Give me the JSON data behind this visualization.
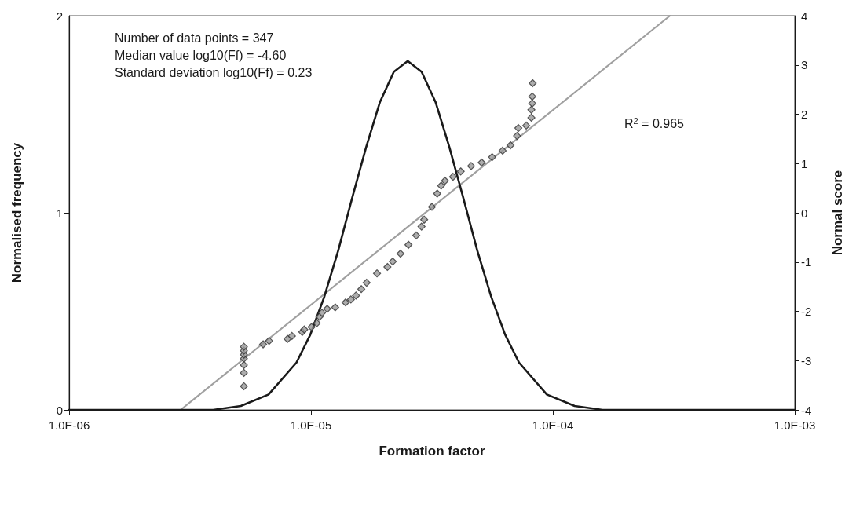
{
  "chart_data": {
    "type": "line",
    "xlabel": "Formation factor",
    "ylabel": "Normalised frequency",
    "y2label": "Normal score",
    "log": "x",
    "grid": false,
    "xlim": [
      1e-06,
      0.001
    ],
    "xticks": [
      {
        "value": 1e-06,
        "label": "1.0E-06"
      },
      {
        "value": 1e-05,
        "label": "1.0E-05"
      },
      {
        "value": 0.0001,
        "label": "1.0E-04"
      },
      {
        "value": 0.001,
        "label": "1.0E-03"
      }
    ],
    "ylim": [
      0,
      2
    ],
    "yticks": [
      0,
      1,
      2
    ],
    "y2lim": [
      -4,
      4
    ],
    "y2ticks": [
      -4,
      -3,
      -2,
      -1,
      0,
      1,
      2,
      3,
      4
    ],
    "annotations": [
      "Number of data points = 347",
      "Median value log10(Ff) = -4.60",
      "Standard deviation log10(Ff) = 0.23",
      "R$^{2}$ = 0.965"
    ],
    "series": [
      {
        "color": "#1a1a1a",
        "marker": "none",
        "x": [
          1e-06,
          2e-06,
          3.02e-06,
          3.94e-06,
          5.13e-06,
          6.68e-06,
          8.71e-06,
          9.94e-06,
          1.135e-05,
          1.296e-05,
          1.479e-05,
          1.689e-05,
          1.928e-05,
          2.2e-05,
          2.512e-05,
          2.867e-05,
          3.273e-05,
          3.737e-05,
          4.266e-05,
          4.87e-05,
          5.559e-05,
          6.346e-05,
          7.244e-05,
          9.441e-05,
          0.000123,
          0.0001603,
          0.0002089,
          0.0005,
          0.001
        ],
        "values": [
          0,
          0,
          0,
          0,
          0.02,
          0.078,
          0.24,
          0.382,
          0.574,
          0.808,
          1.074,
          1.331,
          1.562,
          1.715,
          1.77,
          1.715,
          1.562,
          1.331,
          1.074,
          0.808,
          0.574,
          0.382,
          0.24,
          0.078,
          0.02,
          0,
          0,
          0,
          0
        ]
      },
      {
        "type": "line",
        "axis": "y2",
        "color": "#a0a0a0",
        "marker": "none",
        "x": [
          2.89e-06,
          0.000305
        ],
        "values": [
          -4,
          4
        ]
      },
      {
        "type": "scatter",
        "axis": "y2",
        "color": "#999999",
        "marker": "diamond",
        "x": [
          5.28e-06,
          5.28e-06,
          5.28e-06,
          5.28e-06,
          5.28e-06,
          5.28e-06,
          5.28e-06,
          6.34e-06,
          6.71e-06,
          8e-06,
          8.34e-06,
          9.2e-06,
          9.38e-06,
          1.005e-05,
          1.057e-05,
          1.084e-05,
          1.11e-05,
          1.167e-05,
          1.259e-05,
          1.39e-05,
          1.462e-05,
          1.535e-05,
          1.614e-05,
          1.698e-05,
          1.875e-05,
          2.07e-05,
          2.178e-05,
          2.344e-05,
          2.529e-05,
          2.723e-05,
          2.864e-05,
          2.937e-05,
          3.162e-05,
          3.325e-05,
          3.451e-05,
          3.581e-05,
          3.864e-05,
          4.159e-05,
          4.593e-05,
          5.076e-05,
          5.61e-05,
          6.197e-05,
          6.68e-05,
          7.11e-05,
          7.2e-05,
          7.76e-05,
          8.15e-05,
          8.15e-05,
          8.22e-05,
          8.22e-05,
          8.25e-05
        ],
        "values": [
          -3.52,
          -3.25,
          -3.09,
          -2.96,
          -2.88,
          -2.8,
          -2.72,
          -2.67,
          -2.6,
          -2.56,
          -2.5,
          -2.42,
          -2.37,
          -2.32,
          -2.24,
          -2.11,
          -2.03,
          -1.95,
          -1.92,
          -1.82,
          -1.76,
          -1.68,
          -1.55,
          -1.42,
          -1.23,
          -1.1,
          -0.99,
          -0.83,
          -0.65,
          -0.46,
          -0.28,
          -0.14,
          0.12,
          0.39,
          0.55,
          0.65,
          0.73,
          0.84,
          0.95,
          1.02,
          1.13,
          1.26,
          1.37,
          1.56,
          1.72,
          1.77,
          1.93,
          2.09,
          2.22,
          2.36,
          2.63
        ]
      }
    ]
  }
}
